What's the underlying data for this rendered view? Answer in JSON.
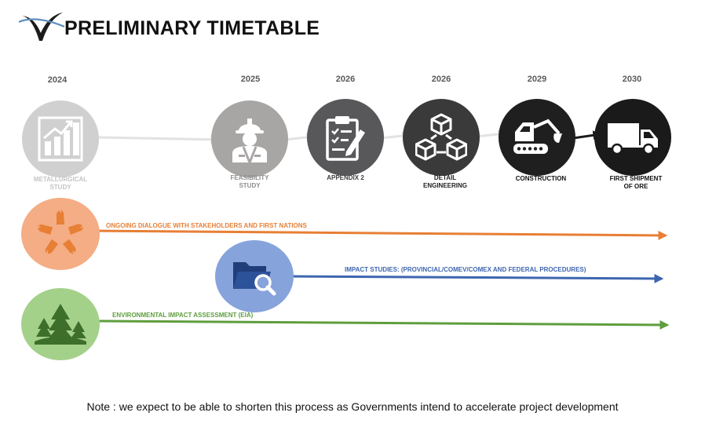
{
  "header": {
    "title": "PRELIMINARY TIMETABLE",
    "logo": "v-checkmark-logo"
  },
  "milestones": [
    {
      "year": "2024",
      "label_line1": "METALLURGICAL",
      "label_line2": "STUDY",
      "icon": "bar-chart-icon",
      "circle_color": "#d0d0d0",
      "label_color": "#c4c4c4"
    },
    {
      "year": "2025",
      "label_line1": "FEASIBILITY",
      "label_line2": "STUDY",
      "icon": "engineer-icon",
      "circle_color": "#a8a6a5",
      "label_color": "#8e8e8e"
    },
    {
      "year": "2026",
      "label_line1": "APPENDIX 2",
      "label_line2": "",
      "icon": "clipboard-icon",
      "circle_color": "#58585a",
      "label_color": "#3e3e3e"
    },
    {
      "year": "2026",
      "label_line1": "DETAIL",
      "label_line2": "ENGINEERING",
      "icon": "cubes-icon",
      "circle_color": "#3a3a3a",
      "label_color": "#222222"
    },
    {
      "year": "2029",
      "label_line1": "CONSTRUCTION",
      "label_line2": "",
      "icon": "excavator-icon",
      "circle_color": "#1f1f1f",
      "label_color": "#111111"
    },
    {
      "year": "2030",
      "label_line1": "FIRST SHIPMENT",
      "label_line2": "OF ORE",
      "icon": "truck-icon",
      "circle_color": "#1a1a1a",
      "label_color": "#111111"
    }
  ],
  "tracks": [
    {
      "text": "ONGOING DIALOGUE WITH STAKEHOLDERS AND FIRST NATIONS",
      "color": "#e77f35",
      "circle_color": "#f4ad84",
      "icon": "hands-circle-icon"
    },
    {
      "text": "IMPACT STUDIES: (PROVINCIAL/COMEV/COMEX AND FEDERAL PROCEDURES)",
      "color": "#3e66b0",
      "circle_color": "#87a3db",
      "icon": "folder-search-icon"
    },
    {
      "text": "ENVIRONMENTAL IMPACT ASSESSMENT (EIA)",
      "color": "#5e9e3e",
      "circle_color": "#a4d18a",
      "icon": "forest-icon"
    }
  ],
  "note": "Note : we expect to be able to shorten this process as Governments intend to accelerate project development"
}
